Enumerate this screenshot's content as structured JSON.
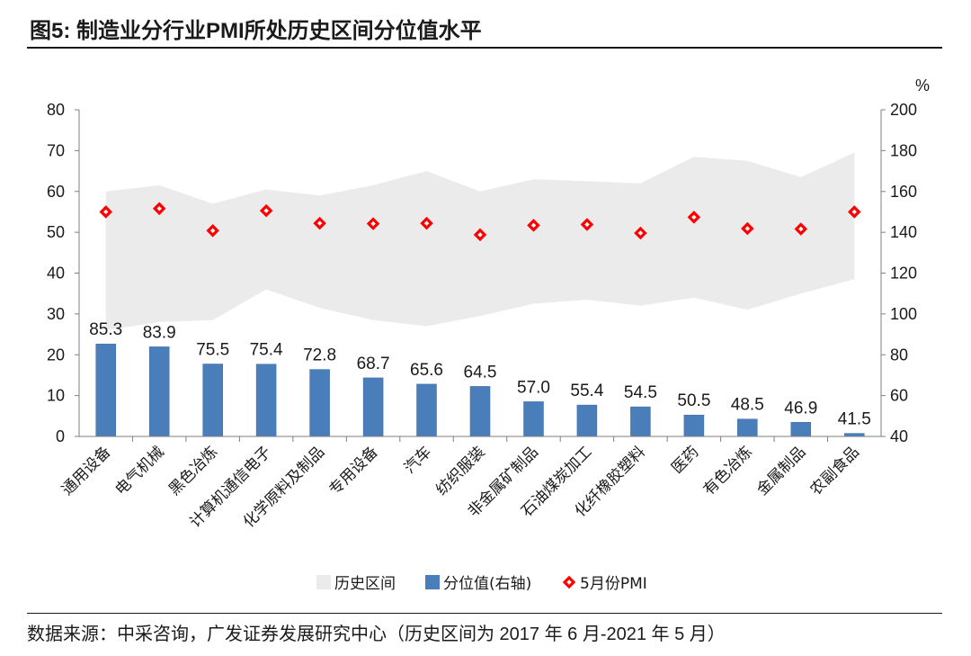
{
  "figure": {
    "title": "图5:  制造业分行业PMI所处历史区间分位值水平",
    "source": "数据来源：中采咨询，广发证券发展研究中心（历史区间为 2017 年 6 月-2021 年 5 月）"
  },
  "chart_data": {
    "type": "bar",
    "categories": [
      "通用设备",
      "电气机械",
      "黑色冶炼",
      "计算机通信电子",
      "化学原料及制品",
      "专用设备",
      "汽车",
      "纺织服装",
      "非金属矿制品",
      "石油煤炭加工",
      "化纤橡胶塑料",
      "医药",
      "有色冶炼",
      "金属制品",
      "农副食品"
    ],
    "left_axis": {
      "min": 0,
      "max": 80,
      "ticks": [
        0,
        10,
        20,
        30,
        40,
        50,
        60,
        70,
        80
      ]
    },
    "right_axis": {
      "min": 40,
      "max": 200,
      "ticks": [
        40,
        60,
        80,
        100,
        120,
        140,
        160,
        180,
        200
      ],
      "unit": "%"
    },
    "series": [
      {
        "name": "历史区间",
        "kind": "area",
        "axis": "left",
        "low": [
          26.0,
          28.0,
          28.5,
          36.0,
          31.5,
          28.5,
          27.0,
          29.5,
          32.5,
          33.5,
          32.0,
          34.0,
          31.0,
          35.0,
          38.5
        ],
        "high": [
          60.0,
          61.5,
          57.0,
          60.5,
          59.0,
          61.5,
          65.0,
          60.0,
          63.0,
          62.5,
          62.0,
          68.5,
          67.5,
          63.5,
          69.5
        ]
      },
      {
        "name": "分位值(右轴)",
        "kind": "bar",
        "axis": "right",
        "values": [
          85.3,
          83.9,
          75.5,
          75.4,
          72.8,
          68.7,
          65.6,
          64.5,
          57.0,
          55.4,
          54.5,
          50.5,
          48.5,
          46.9,
          41.5
        ],
        "labels": [
          "85.3",
          "83.9",
          "75.5",
          "75.4",
          "72.8",
          "68.7",
          "65.6",
          "64.5",
          "57.0",
          "55.4",
          "54.5",
          "50.5",
          "48.5",
          "46.9",
          "41.5"
        ]
      },
      {
        "name": "5月份PMI",
        "kind": "scatter",
        "axis": "left",
        "values": [
          55.0,
          55.8,
          50.4,
          55.3,
          52.2,
          52.1,
          52.2,
          49.4,
          51.7,
          51.9,
          49.8,
          53.7,
          50.9,
          50.8,
          55.0
        ]
      }
    ],
    "colors": {
      "area": "#ebebeb",
      "bar": "#4a7ebb",
      "bar_edge": "#3b6aa5",
      "marker_fill": "#ffffff",
      "marker_edge": "#ff0000"
    },
    "legend": {
      "position": "bottom",
      "items": [
        "历史区间",
        "分位值(右轴)",
        "5月份PMI"
      ]
    }
  }
}
